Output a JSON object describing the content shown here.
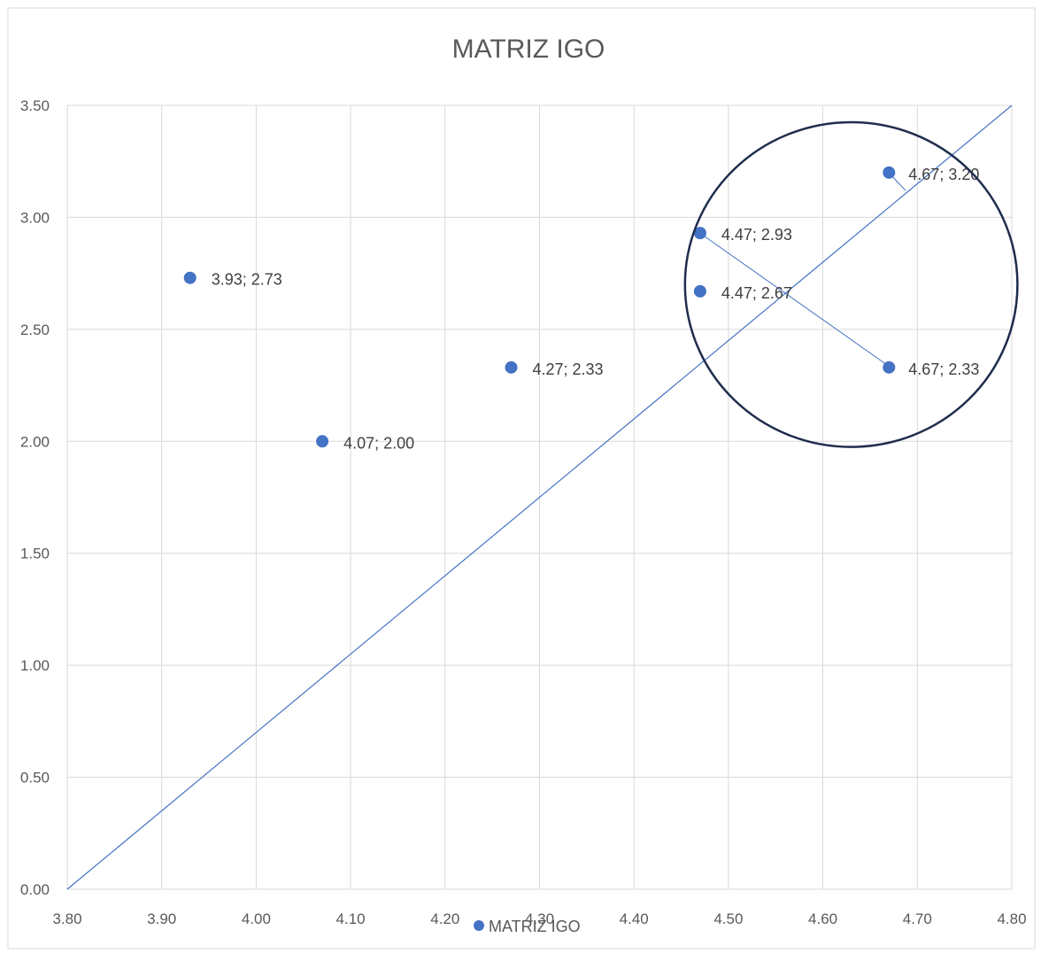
{
  "chart_data": {
    "type": "scatter",
    "title": "MATRIZ IGO",
    "xlabel": "",
    "ylabel": "",
    "xlim": [
      3.8,
      4.8
    ],
    "ylim": [
      0,
      3.5
    ],
    "x_ticks": [
      "3.80",
      "3.90",
      "4.00",
      "4.10",
      "4.20",
      "4.30",
      "4.40",
      "4.50",
      "4.60",
      "4.70",
      "4.80"
    ],
    "y_ticks": [
      "0.00",
      "0.50",
      "1.00",
      "1.50",
      "2.00",
      "2.50",
      "3.00",
      "3.50"
    ],
    "grid": true,
    "legend": "bottom",
    "series": [
      {
        "name": "MATRIZ IGO",
        "color": "#4472C4",
        "points": [
          {
            "x": 3.93,
            "y": 2.73,
            "label": "3.93; 2.73"
          },
          {
            "x": 4.07,
            "y": 2.0,
            "label": "4.07; 2.00"
          },
          {
            "x": 4.27,
            "y": 2.33,
            "label": "4.27; 2.33"
          },
          {
            "x": 4.47,
            "y": 2.93,
            "label": "4.47; 2.93"
          },
          {
            "x": 4.47,
            "y": 2.67,
            "label": "4.47; 2.67"
          },
          {
            "x": 4.67,
            "y": 3.2,
            "label": "4.67; 3.20"
          },
          {
            "x": 4.67,
            "y": 2.33,
            "label": "4.67; 2.33"
          }
        ]
      }
    ],
    "reference_line": {
      "from": [
        3.8,
        0
      ],
      "to": [
        4.8,
        3.5
      ],
      "color": "#4472C4"
    },
    "highlight_circle": {
      "cx": 4.63,
      "cy": 2.7,
      "rx": 0.176,
      "ry": 0.725,
      "color": "#1F2D4D"
    }
  }
}
